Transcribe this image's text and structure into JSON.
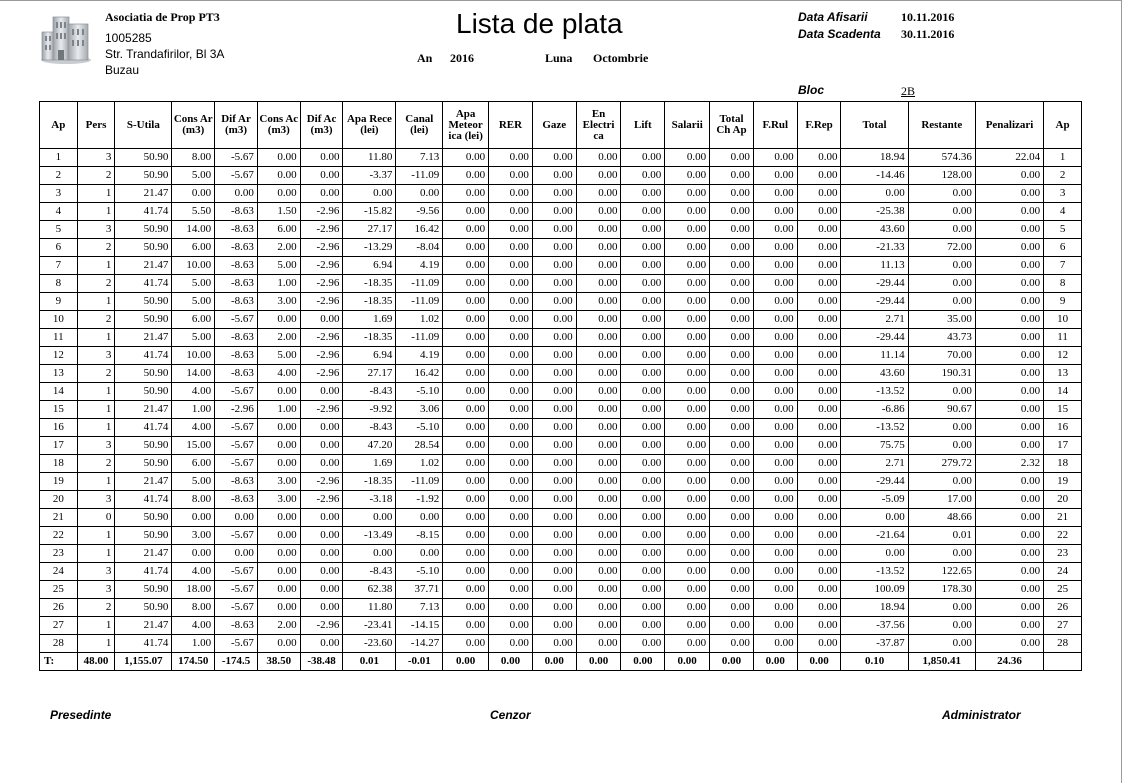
{
  "org": {
    "name": "Asociatia de Prop PT3",
    "code": "1005285",
    "address": "Str. Trandafirilor, Bl 3A",
    "city": "Buzau"
  },
  "title": "Lista de plata",
  "period": {
    "year_label": "An",
    "year": "2016",
    "month_label": "Luna",
    "month": "Octombrie"
  },
  "meta": {
    "display_label": "Data Afisarii",
    "display_date": "10.11.2016",
    "due_label": "Data Scadenta",
    "due_date": "30.11.2016",
    "bloc_label": "Bloc",
    "bloc": "2B"
  },
  "table": {
    "headers": [
      "Ap",
      "Pers",
      "S-Utila",
      "Cons Ar (m3)",
      "Dif Ar (m3)",
      "Cons Ac (m3)",
      "Dif Ac (m3)",
      "Apa Rece (lei)",
      "Canal (lei)",
      "Apa Meteor ica (lei)",
      "RER",
      "Gaze",
      "En Electri ca",
      "Lift",
      "Salarii",
      "Total Ch Ap",
      "F.Rul",
      "F.Rep",
      "Total",
      "Restante",
      "Penalizari",
      "Ap"
    ],
    "rows": [
      [
        "1",
        "3",
        "50.90",
        "8.00",
        "-5.67",
        "0.00",
        "0.00",
        "11.80",
        "7.13",
        "0.00",
        "0.00",
        "0.00",
        "0.00",
        "0.00",
        "0.00",
        "0.00",
        "0.00",
        "0.00",
        "18.94",
        "574.36",
        "22.04",
        "1"
      ],
      [
        "2",
        "2",
        "50.90",
        "5.00",
        "-5.67",
        "0.00",
        "0.00",
        "-3.37",
        "-11.09",
        "0.00",
        "0.00",
        "0.00",
        "0.00",
        "0.00",
        "0.00",
        "0.00",
        "0.00",
        "0.00",
        "-14.46",
        "128.00",
        "0.00",
        "2"
      ],
      [
        "3",
        "1",
        "21.47",
        "0.00",
        "0.00",
        "0.00",
        "0.00",
        "0.00",
        "0.00",
        "0.00",
        "0.00",
        "0.00",
        "0.00",
        "0.00",
        "0.00",
        "0.00",
        "0.00",
        "0.00",
        "0.00",
        "0.00",
        "0.00",
        "3"
      ],
      [
        "4",
        "1",
        "41.74",
        "5.50",
        "-8.63",
        "1.50",
        "-2.96",
        "-15.82",
        "-9.56",
        "0.00",
        "0.00",
        "0.00",
        "0.00",
        "0.00",
        "0.00",
        "0.00",
        "0.00",
        "0.00",
        "-25.38",
        "0.00",
        "0.00",
        "4"
      ],
      [
        "5",
        "3",
        "50.90",
        "14.00",
        "-8.63",
        "6.00",
        "-2.96",
        "27.17",
        "16.42",
        "0.00",
        "0.00",
        "0.00",
        "0.00",
        "0.00",
        "0.00",
        "0.00",
        "0.00",
        "0.00",
        "43.60",
        "0.00",
        "0.00",
        "5"
      ],
      [
        "6",
        "2",
        "50.90",
        "6.00",
        "-8.63",
        "2.00",
        "-2.96",
        "-13.29",
        "-8.04",
        "0.00",
        "0.00",
        "0.00",
        "0.00",
        "0.00",
        "0.00",
        "0.00",
        "0.00",
        "0.00",
        "-21.33",
        "72.00",
        "0.00",
        "6"
      ],
      [
        "7",
        "1",
        "21.47",
        "10.00",
        "-8.63",
        "5.00",
        "-2.96",
        "6.94",
        "4.19",
        "0.00",
        "0.00",
        "0.00",
        "0.00",
        "0.00",
        "0.00",
        "0.00",
        "0.00",
        "0.00",
        "11.13",
        "0.00",
        "0.00",
        "7"
      ],
      [
        "8",
        "2",
        "41.74",
        "5.00",
        "-8.63",
        "1.00",
        "-2.96",
        "-18.35",
        "-11.09",
        "0.00",
        "0.00",
        "0.00",
        "0.00",
        "0.00",
        "0.00",
        "0.00",
        "0.00",
        "0.00",
        "-29.44",
        "0.00",
        "0.00",
        "8"
      ],
      [
        "9",
        "1",
        "50.90",
        "5.00",
        "-8.63",
        "3.00",
        "-2.96",
        "-18.35",
        "-11.09",
        "0.00",
        "0.00",
        "0.00",
        "0.00",
        "0.00",
        "0.00",
        "0.00",
        "0.00",
        "0.00",
        "-29.44",
        "0.00",
        "0.00",
        "9"
      ],
      [
        "10",
        "2",
        "50.90",
        "6.00",
        "-5.67",
        "0.00",
        "0.00",
        "1.69",
        "1.02",
        "0.00",
        "0.00",
        "0.00",
        "0.00",
        "0.00",
        "0.00",
        "0.00",
        "0.00",
        "0.00",
        "2.71",
        "35.00",
        "0.00",
        "10"
      ],
      [
        "11",
        "1",
        "21.47",
        "5.00",
        "-8.63",
        "2.00",
        "-2.96",
        "-18.35",
        "-11.09",
        "0.00",
        "0.00",
        "0.00",
        "0.00",
        "0.00",
        "0.00",
        "0.00",
        "0.00",
        "0.00",
        "-29.44",
        "43.73",
        "0.00",
        "11"
      ],
      [
        "12",
        "3",
        "41.74",
        "10.00",
        "-8.63",
        "5.00",
        "-2.96",
        "6.94",
        "4.19",
        "0.00",
        "0.00",
        "0.00",
        "0.00",
        "0.00",
        "0.00",
        "0.00",
        "0.00",
        "0.00",
        "11.14",
        "70.00",
        "0.00",
        "12"
      ],
      [
        "13",
        "2",
        "50.90",
        "14.00",
        "-8.63",
        "4.00",
        "-2.96",
        "27.17",
        "16.42",
        "0.00",
        "0.00",
        "0.00",
        "0.00",
        "0.00",
        "0.00",
        "0.00",
        "0.00",
        "0.00",
        "43.60",
        "190.31",
        "0.00",
        "13"
      ],
      [
        "14",
        "1",
        "50.90",
        "4.00",
        "-5.67",
        "0.00",
        "0.00",
        "-8.43",
        "-5.10",
        "0.00",
        "0.00",
        "0.00",
        "0.00",
        "0.00",
        "0.00",
        "0.00",
        "0.00",
        "0.00",
        "-13.52",
        "0.00",
        "0.00",
        "14"
      ],
      [
        "15",
        "1",
        "21.47",
        "1.00",
        "-2.96",
        "1.00",
        "-2.96",
        "-9.92",
        "3.06",
        "0.00",
        "0.00",
        "0.00",
        "0.00",
        "0.00",
        "0.00",
        "0.00",
        "0.00",
        "0.00",
        "-6.86",
        "90.67",
        "0.00",
        "15"
      ],
      [
        "16",
        "1",
        "41.74",
        "4.00",
        "-5.67",
        "0.00",
        "0.00",
        "-8.43",
        "-5.10",
        "0.00",
        "0.00",
        "0.00",
        "0.00",
        "0.00",
        "0.00",
        "0.00",
        "0.00",
        "0.00",
        "-13.52",
        "0.00",
        "0.00",
        "16"
      ],
      [
        "17",
        "3",
        "50.90",
        "15.00",
        "-5.67",
        "0.00",
        "0.00",
        "47.20",
        "28.54",
        "0.00",
        "0.00",
        "0.00",
        "0.00",
        "0.00",
        "0.00",
        "0.00",
        "0.00",
        "0.00",
        "75.75",
        "0.00",
        "0.00",
        "17"
      ],
      [
        "18",
        "2",
        "50.90",
        "6.00",
        "-5.67",
        "0.00",
        "0.00",
        "1.69",
        "1.02",
        "0.00",
        "0.00",
        "0.00",
        "0.00",
        "0.00",
        "0.00",
        "0.00",
        "0.00",
        "0.00",
        "2.71",
        "279.72",
        "2.32",
        "18"
      ],
      [
        "19",
        "1",
        "21.47",
        "5.00",
        "-8.63",
        "3.00",
        "-2.96",
        "-18.35",
        "-11.09",
        "0.00",
        "0.00",
        "0.00",
        "0.00",
        "0.00",
        "0.00",
        "0.00",
        "0.00",
        "0.00",
        "-29.44",
        "0.00",
        "0.00",
        "19"
      ],
      [
        "20",
        "3",
        "41.74",
        "8.00",
        "-8.63",
        "3.00",
        "-2.96",
        "-3.18",
        "-1.92",
        "0.00",
        "0.00",
        "0.00",
        "0.00",
        "0.00",
        "0.00",
        "0.00",
        "0.00",
        "0.00",
        "-5.09",
        "17.00",
        "0.00",
        "20"
      ],
      [
        "21",
        "0",
        "50.90",
        "0.00",
        "0.00",
        "0.00",
        "0.00",
        "0.00",
        "0.00",
        "0.00",
        "0.00",
        "0.00",
        "0.00",
        "0.00",
        "0.00",
        "0.00",
        "0.00",
        "0.00",
        "0.00",
        "48.66",
        "0.00",
        "21"
      ],
      [
        "22",
        "1",
        "50.90",
        "3.00",
        "-5.67",
        "0.00",
        "0.00",
        "-13.49",
        "-8.15",
        "0.00",
        "0.00",
        "0.00",
        "0.00",
        "0.00",
        "0.00",
        "0.00",
        "0.00",
        "0.00",
        "-21.64",
        "0.01",
        "0.00",
        "22"
      ],
      [
        "23",
        "1",
        "21.47",
        "0.00",
        "0.00",
        "0.00",
        "0.00",
        "0.00",
        "0.00",
        "0.00",
        "0.00",
        "0.00",
        "0.00",
        "0.00",
        "0.00",
        "0.00",
        "0.00",
        "0.00",
        "0.00",
        "0.00",
        "0.00",
        "23"
      ],
      [
        "24",
        "3",
        "41.74",
        "4.00",
        "-5.67",
        "0.00",
        "0.00",
        "-8.43",
        "-5.10",
        "0.00",
        "0.00",
        "0.00",
        "0.00",
        "0.00",
        "0.00",
        "0.00",
        "0.00",
        "0.00",
        "-13.52",
        "122.65",
        "0.00",
        "24"
      ],
      [
        "25",
        "3",
        "50.90",
        "18.00",
        "-5.67",
        "0.00",
        "0.00",
        "62.38",
        "37.71",
        "0.00",
        "0.00",
        "0.00",
        "0.00",
        "0.00",
        "0.00",
        "0.00",
        "0.00",
        "0.00",
        "100.09",
        "178.30",
        "0.00",
        "25"
      ],
      [
        "26",
        "2",
        "50.90",
        "8.00",
        "-5.67",
        "0.00",
        "0.00",
        "11.80",
        "7.13",
        "0.00",
        "0.00",
        "0.00",
        "0.00",
        "0.00",
        "0.00",
        "0.00",
        "0.00",
        "0.00",
        "18.94",
        "0.00",
        "0.00",
        "26"
      ],
      [
        "27",
        "1",
        "21.47",
        "4.00",
        "-8.63",
        "2.00",
        "-2.96",
        "-23.41",
        "-14.15",
        "0.00",
        "0.00",
        "0.00",
        "0.00",
        "0.00",
        "0.00",
        "0.00",
        "0.00",
        "0.00",
        "-37.56",
        "0.00",
        "0.00",
        "27"
      ],
      [
        "28",
        "1",
        "41.74",
        "1.00",
        "-5.67",
        "0.00",
        "0.00",
        "-23.60",
        "-14.27",
        "0.00",
        "0.00",
        "0.00",
        "0.00",
        "0.00",
        "0.00",
        "0.00",
        "0.00",
        "0.00",
        "-37.87",
        "0.00",
        "0.00",
        "28"
      ]
    ],
    "totals": [
      "T:",
      "48.00",
      "1,155.07",
      "174.50",
      "-174.5",
      "38.50",
      "-38.48",
      "0.01",
      "-0.01",
      "0.00",
      "0.00",
      "0.00",
      "0.00",
      "0.00",
      "0.00",
      "0.00",
      "0.00",
      "0.00",
      "0.10",
      "1,850.41",
      "24.36",
      ""
    ]
  },
  "signatures": {
    "president": "Presedinte",
    "censor": "Cenzor",
    "administrator": "Administrator"
  }
}
